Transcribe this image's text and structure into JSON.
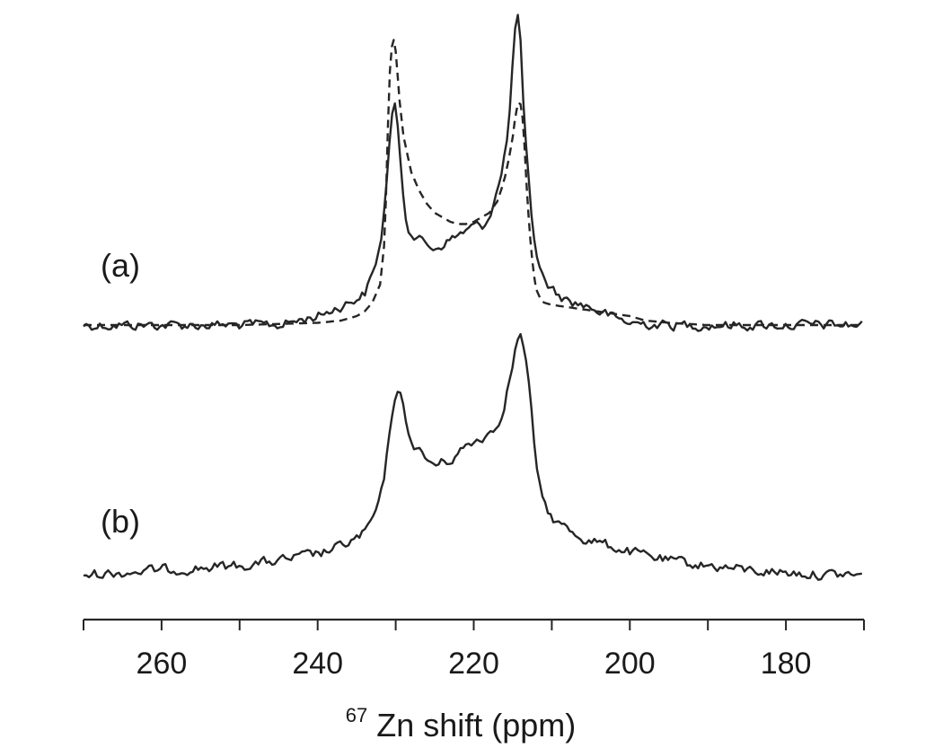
{
  "chart_data": [
    {
      "type": "line",
      "panel_label": "(a)",
      "xlim": [
        270,
        170
      ],
      "x_reversed": true,
      "series": [
        {
          "style": "solid",
          "color": "#262626",
          "x": [
            270,
            265,
            260,
            255,
            250,
            245,
            240,
            238,
            236,
            234,
            233,
            232,
            231.5,
            231,
            230.6,
            230.3,
            230,
            229.6,
            229.2,
            228.8,
            228.2,
            227.6,
            227,
            226,
            225,
            224,
            223,
            222,
            221,
            220,
            219,
            218,
            217.5,
            217,
            216.5,
            216,
            215.5,
            215.1,
            214.8,
            214.5,
            214.2,
            214,
            213.7,
            213.3,
            212.9,
            212.5,
            212,
            211.5,
            211,
            210.5,
            210,
            209,
            208,
            207,
            206,
            205,
            204,
            203,
            202,
            201,
            200,
            195,
            190,
            185,
            180,
            175,
            170
          ],
          "y": [
            0,
            0,
            0,
            0,
            0,
            0,
            0.04,
            0.07,
            0.1,
            0.14,
            0.22,
            0.35,
            0.5,
            0.72,
            0.9,
            0.98,
            0.96,
            0.82,
            0.65,
            0.5,
            0.42,
            0.4,
            0.38,
            0.36,
            0.34,
            0.36,
            0.38,
            0.4,
            0.42,
            0.44,
            0.44,
            0.48,
            0.55,
            0.6,
            0.66,
            0.76,
            0.9,
            1.1,
            1.28,
            1.39,
            1.36,
            1.25,
            1.0,
            0.78,
            0.6,
            0.45,
            0.33,
            0.25,
            0.2,
            0.18,
            0.16,
            0.13,
            0.11,
            0.1,
            0.09,
            0.08,
            0.06,
            0.05,
            0.03,
            0.02,
            0.01,
            0,
            0,
            0,
            0,
            0,
            0
          ]
        },
        {
          "style": "dashed",
          "color": "#262626",
          "x": [
            270,
            260,
            250,
            245,
            240,
            237,
            235,
            234,
            233,
            232,
            231.5,
            231.2,
            231,
            230.8,
            230.6,
            230.3,
            230,
            229.5,
            229,
            228,
            227,
            226,
            225,
            224,
            223,
            222,
            221,
            220,
            219,
            218,
            217,
            216.5,
            216,
            215.5,
            215,
            214.7,
            214.4,
            214.1,
            213.8,
            213.5,
            213.2,
            212.8,
            212.4,
            212,
            211.5,
            211,
            210,
            209,
            208,
            207,
            206,
            205,
            204,
            203,
            202,
            201,
            200,
            199,
            198,
            195,
            190,
            180,
            170
          ],
          "y": [
            0,
            0,
            0,
            0.005,
            0.01,
            0.02,
            0.04,
            0.06,
            0.1,
            0.18,
            0.35,
            0.6,
            0.88,
            1.1,
            1.22,
            1.28,
            1.22,
            1.0,
            0.84,
            0.68,
            0.6,
            0.54,
            0.5,
            0.48,
            0.46,
            0.45,
            0.45,
            0.46,
            0.48,
            0.5,
            0.55,
            0.6,
            0.66,
            0.74,
            0.84,
            0.92,
            0.98,
            1.0,
            0.95,
            0.8,
            0.6,
            0.4,
            0.25,
            0.16,
            0.12,
            0.1,
            0.09,
            0.085,
            0.08,
            0.075,
            0.07,
            0.065,
            0.06,
            0.055,
            0.05,
            0.045,
            0.04,
            0.03,
            0.02,
            0.01,
            0,
            0,
            0
          ]
        }
      ]
    },
    {
      "type": "line",
      "panel_label": "(b)",
      "xlim": [
        270,
        170
      ],
      "x_reversed": true,
      "series": [
        {
          "style": "solid",
          "color": "#262626",
          "x": [
            270,
            265,
            260,
            255,
            250,
            245,
            240,
            238,
            236,
            234,
            233,
            232,
            231.5,
            231,
            230.5,
            230,
            229.5,
            229,
            228.5,
            228,
            227,
            226,
            225,
            224,
            223,
            222,
            221,
            220,
            219,
            218,
            217,
            216.5,
            216,
            215.5,
            215,
            214.6,
            214.2,
            213.8,
            213.4,
            213,
            212.6,
            212.2,
            212,
            211.8,
            211.5,
            211,
            210.5,
            210,
            209,
            208,
            207,
            206,
            205,
            204,
            203,
            202,
            201,
            200,
            195,
            190,
            185,
            180,
            175,
            170
          ],
          "y": [
            0,
            0.01,
            0.02,
            0.03,
            0.04,
            0.06,
            0.09,
            0.11,
            0.14,
            0.18,
            0.24,
            0.32,
            0.42,
            0.55,
            0.7,
            0.8,
            0.79,
            0.72,
            0.65,
            0.58,
            0.54,
            0.5,
            0.48,
            0.49,
            0.5,
            0.53,
            0.56,
            0.58,
            0.6,
            0.62,
            0.65,
            0.7,
            0.76,
            0.84,
            0.92,
            1.0,
            1.04,
            1.03,
            0.96,
            0.84,
            0.7,
            0.56,
            0.48,
            0.42,
            0.37,
            0.32,
            0.28,
            0.25,
            0.22,
            0.2,
            0.18,
            0.16,
            0.15,
            0.14,
            0.13,
            0.12,
            0.11,
            0.1,
            0.06,
            0.04,
            0.02,
            0.01,
            0,
            0
          ]
        }
      ]
    }
  ],
  "axis": {
    "ticks": [
      260,
      240,
      220,
      200,
      180
    ],
    "tick_labels": [
      "260",
      "240",
      "220",
      "200",
      "180"
    ],
    "minor_ticks": [
      270,
      250,
      230,
      210,
      190,
      170
    ],
    "xlabel_superscript": "67",
    "xlabel": "Zn shift (ppm)"
  }
}
